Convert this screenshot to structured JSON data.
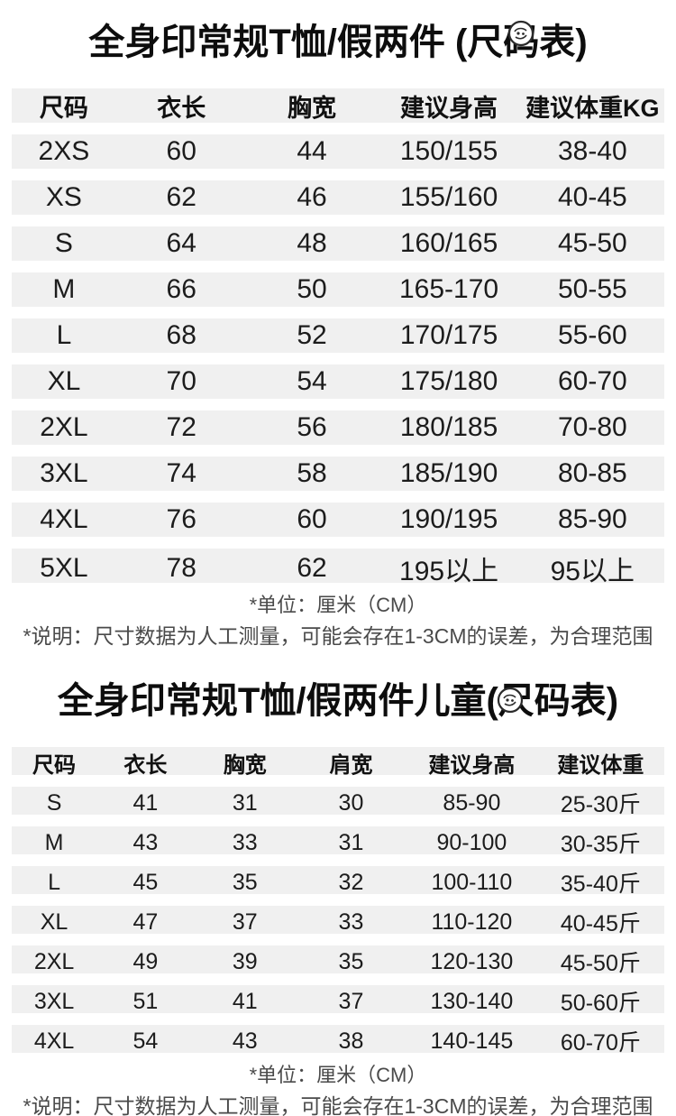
{
  "theme": {
    "background": "#ffffff",
    "row_stripe": "#f0f0f0",
    "title_color": "#0d0d0d",
    "body_text_color": "#1c1c1c",
    "note_color": "#4a4a4a"
  },
  "watermark_icon": "blurred-circular-watermark",
  "adult_section": {
    "title": "全身印常规T恤/假两件 (尺码表)",
    "columns": [
      "尺码",
      "衣长",
      "胸宽",
      "建议身高",
      "建议体重KG"
    ],
    "rows": [
      [
        "2XS",
        "60",
        "44",
        "150/155",
        "38-40"
      ],
      [
        "XS",
        "62",
        "46",
        "155/160",
        "40-45"
      ],
      [
        "S",
        "64",
        "48",
        "160/165",
        "45-50"
      ],
      [
        "M",
        "66",
        "50",
        "165-170",
        "50-55"
      ],
      [
        "L",
        "68",
        "52",
        "170/175",
        "55-60"
      ],
      [
        "XL",
        "70",
        "54",
        "175/180",
        "60-70"
      ],
      [
        "2XL",
        "72",
        "56",
        "180/185",
        "70-80"
      ],
      [
        "3XL",
        "74",
        "58",
        "185/190",
        "80-85"
      ],
      [
        "4XL",
        "76",
        "60",
        "190/195",
        "85-90"
      ],
      [
        "5XL",
        "78",
        "62",
        "195以上",
        "95以上"
      ]
    ],
    "notes": {
      "unit": "*单位：厘米（CM）",
      "disclaimer": "*说明：尺寸数据为人工测量，可能会存在1-3CM的误差，为合理范围"
    }
  },
  "kids_section": {
    "title": "全身印常规T恤/假两件儿童(尺码表)",
    "columns": [
      "尺码",
      "衣长",
      "胸宽",
      "肩宽",
      "建议身高",
      "建议体重"
    ],
    "rows": [
      [
        "S",
        "41",
        "31",
        "30",
        "85-90",
        "25-30斤"
      ],
      [
        "M",
        "43",
        "33",
        "31",
        "90-100",
        "30-35斤"
      ],
      [
        "L",
        "45",
        "35",
        "32",
        "100-110",
        "35-40斤"
      ],
      [
        "XL",
        "47",
        "37",
        "33",
        "110-120",
        "40-45斤"
      ],
      [
        "2XL",
        "49",
        "39",
        "35",
        "120-130",
        "45-50斤"
      ],
      [
        "3XL",
        "51",
        "41",
        "37",
        "130-140",
        "50-60斤"
      ],
      [
        "4XL",
        "54",
        "43",
        "38",
        "140-145",
        "60-70斤"
      ]
    ],
    "notes": {
      "unit": "*单位：厘米（CM）",
      "disclaimer": "*说明：尺寸数据为人工测量，可能会存在1-3CM的误差，为合理范围"
    }
  }
}
